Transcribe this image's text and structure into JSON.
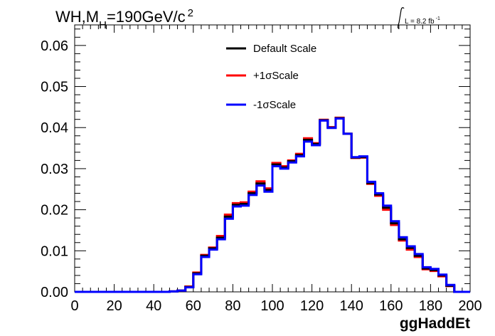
{
  "chart_data": {
    "type": "line",
    "title": {
      "main": "WH,M",
      "sub": "H",
      "rest": "=190GeV/c",
      "sup": "2"
    },
    "lumi": {
      "text": "L = 8.2 fb",
      "sup": "-1"
    },
    "xlabel": "ggHaddEt",
    "ylabel": "",
    "xlim": [
      0,
      200
    ],
    "ylim": [
      0,
      0.065
    ],
    "x_ticks": [
      0,
      20,
      40,
      60,
      80,
      100,
      120,
      140,
      160,
      180,
      200
    ],
    "y_ticks": [
      0.0,
      0.01,
      0.02,
      0.03,
      0.04,
      0.05,
      0.06
    ],
    "y_tick_labels": [
      "0.00",
      "0.01",
      "0.02",
      "0.03",
      "0.04",
      "0.05",
      "0.06"
    ],
    "x_tick_labels": [
      "0",
      "20",
      "40",
      "60",
      "80",
      "100",
      "120",
      "140",
      "160",
      "180",
      "200"
    ],
    "bin_edges": [
      0,
      4,
      8,
      12,
      16,
      20,
      24,
      28,
      32,
      36,
      40,
      44,
      48,
      52,
      56,
      60,
      64,
      68,
      72,
      76,
      80,
      84,
      88,
      92,
      96,
      100,
      104,
      108,
      112,
      116,
      120,
      124,
      128,
      132,
      136,
      140,
      144,
      148,
      152,
      156,
      160,
      164,
      168,
      172,
      176,
      180,
      184,
      188,
      192,
      196,
      200
    ],
    "series": [
      {
        "name": "Default Scale",
        "color": "#000000",
        "values": [
          0,
          0,
          0,
          0,
          0,
          0,
          0,
          0,
          0,
          0,
          0,
          0,
          0.0001,
          0.0003,
          0.0012,
          0.0045,
          0.0088,
          0.0106,
          0.0132,
          0.0183,
          0.0212,
          0.0214,
          0.024,
          0.0264,
          0.0248,
          0.031,
          0.0303,
          0.0318,
          0.0333,
          0.037,
          0.036,
          0.0418,
          0.04,
          0.0423,
          0.0385,
          0.0327,
          0.0328,
          0.0265,
          0.0237,
          0.0205,
          0.0167,
          0.0128,
          0.0107,
          0.0088,
          0.0057,
          0.0053,
          0.004,
          0.0015,
          0,
          0
        ]
      },
      {
        "name": "+1σScale",
        "color": "#ff0000",
        "values": [
          0,
          0,
          0,
          0,
          0,
          0,
          0,
          0,
          0,
          0,
          0,
          0,
          0.0001,
          0.0003,
          0.0013,
          0.0047,
          0.009,
          0.0108,
          0.0136,
          0.0188,
          0.0216,
          0.0218,
          0.0244,
          0.0269,
          0.0252,
          0.0314,
          0.0306,
          0.032,
          0.0336,
          0.0374,
          0.0362,
          0.0419,
          0.0401,
          0.0424,
          0.0385,
          0.0326,
          0.0327,
          0.0263,
          0.0234,
          0.02,
          0.0163,
          0.0125,
          0.0103,
          0.0085,
          0.0055,
          0.0051,
          0.0038,
          0.0014,
          0,
          0
        ]
      },
      {
        "name": "-1σScale",
        "color": "#0000ff",
        "values": [
          0,
          0,
          0,
          0,
          0,
          0,
          0,
          0,
          0,
          0,
          0,
          0,
          0.0001,
          0.0003,
          0.0011,
          0.0043,
          0.0085,
          0.0103,
          0.0128,
          0.0178,
          0.0208,
          0.021,
          0.0236,
          0.0259,
          0.0244,
          0.0306,
          0.03,
          0.0315,
          0.033,
          0.0366,
          0.0357,
          0.0417,
          0.0399,
          0.0422,
          0.0385,
          0.0328,
          0.033,
          0.0268,
          0.024,
          0.021,
          0.0172,
          0.0133,
          0.0111,
          0.0092,
          0.006,
          0.0056,
          0.0042,
          0.0017,
          0,
          0
        ]
      }
    ],
    "legend_position": "top-center",
    "grid": false
  }
}
